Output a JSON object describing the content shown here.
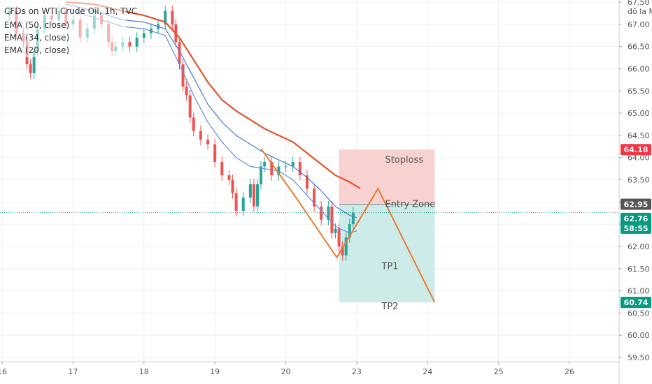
{
  "chart_data": {
    "type": "candlestick",
    "title": "CFDs on WTI Crude Oil, 1h, TVC",
    "indicators": [
      {
        "name": "EMA (50, close)",
        "color": "#e8502d"
      },
      {
        "name": "EMA (34, close)",
        "color": "#4a79d8"
      },
      {
        "name": "EMA (20, close)",
        "color": "#5b8ee8"
      }
    ],
    "currency_label": "đô la Mỹ",
    "ylim": [
      59.5,
      67.5
    ],
    "y_ticks": [
      "67.50",
      "67.00",
      "66.50",
      "66.00",
      "65.50",
      "65.00",
      "64.50",
      "64.00",
      "63.50",
      "63.00",
      "62.50",
      "62.00",
      "61.50",
      "61.00",
      "60.50",
      "60.00",
      "59.50"
    ],
    "x_ticks": [
      "16",
      "17",
      "18",
      "19",
      "20",
      "23",
      "24",
      "25",
      "26"
    ],
    "x_tick_positions": [
      16,
      17,
      18,
      19,
      20,
      21,
      22,
      23,
      24
    ],
    "xlim": [
      15.97,
      24.7
    ],
    "candle_close_path": [
      [
        16.0,
        67.2
      ],
      [
        16.1,
        67.3
      ],
      [
        16.2,
        66.8
      ],
      [
        16.3,
        66.6
      ],
      [
        16.35,
        66.1
      ],
      [
        16.4,
        65.9
      ],
      [
        16.45,
        66.4
      ],
      [
        16.5,
        66.9
      ],
      [
        16.6,
        67.2
      ],
      [
        16.7,
        67.1
      ],
      [
        16.8,
        67.3
      ],
      [
        16.9,
        67.0
      ],
      [
        17.0,
        67.1
      ],
      [
        17.1,
        66.7
      ],
      [
        17.2,
        66.9
      ],
      [
        17.3,
        67.2
      ],
      [
        17.4,
        67.0
      ],
      [
        17.5,
        66.6
      ],
      [
        17.55,
        66.4
      ],
      [
        17.6,
        66.5
      ],
      [
        17.7,
        66.6
      ],
      [
        17.8,
        66.5
      ],
      [
        17.9,
        66.7
      ],
      [
        18.0,
        66.8
      ],
      [
        18.1,
        66.9
      ],
      [
        18.2,
        67.0
      ],
      [
        18.3,
        67.3
      ],
      [
        18.4,
        67.0
      ],
      [
        18.45,
        66.6
      ],
      [
        18.5,
        66.1
      ],
      [
        18.55,
        65.6
      ],
      [
        18.6,
        65.4
      ],
      [
        18.65,
        64.9
      ],
      [
        18.7,
        64.6
      ],
      [
        18.8,
        64.4
      ],
      [
        18.9,
        64.3
      ],
      [
        19.0,
        63.9
      ],
      [
        19.1,
        63.6
      ],
      [
        19.2,
        63.5
      ],
      [
        19.25,
        63.2
      ],
      [
        19.3,
        62.8
      ],
      [
        19.4,
        63.1
      ],
      [
        19.5,
        63.4
      ],
      [
        19.55,
        62.9
      ],
      [
        19.6,
        63.4
      ],
      [
        19.65,
        63.8
      ],
      [
        19.7,
        63.9
      ],
      [
        19.8,
        63.6
      ],
      [
        19.9,
        63.8
      ],
      [
        20.0,
        63.8
      ],
      [
        20.1,
        63.9
      ],
      [
        20.2,
        63.6
      ],
      [
        20.3,
        63.3
      ],
      [
        20.4,
        62.9
      ],
      [
        20.5,
        62.6
      ],
      [
        20.6,
        62.9
      ],
      [
        20.65,
        62.3
      ],
      [
        20.7,
        62.4
      ],
      [
        20.75,
        62.0
      ],
      [
        20.8,
        61.8
      ],
      [
        20.85,
        62.2
      ],
      [
        20.9,
        62.5
      ],
      [
        20.95,
        62.76
      ]
    ],
    "ema50": [
      [
        16.9,
        67.5
      ],
      [
        17.3,
        67.45
      ],
      [
        17.7,
        67.3
      ],
      [
        18.0,
        67.2
      ],
      [
        18.3,
        67.05
      ],
      [
        18.5,
        66.7
      ],
      [
        18.7,
        66.2
      ],
      [
        18.9,
        65.7
      ],
      [
        19.1,
        65.3
      ],
      [
        19.3,
        65.05
      ],
      [
        19.5,
        64.85
      ],
      [
        19.7,
        64.65
      ],
      [
        19.9,
        64.5
      ],
      [
        20.1,
        64.35
      ],
      [
        20.3,
        64.1
      ],
      [
        20.5,
        63.85
      ],
      [
        20.7,
        63.6
      ],
      [
        20.9,
        63.45
      ],
      [
        21.05,
        63.3
      ]
    ],
    "ema34": [
      [
        16.9,
        67.45
      ],
      [
        17.3,
        67.3
      ],
      [
        17.7,
        67.1
      ],
      [
        18.0,
        67.05
      ],
      [
        18.3,
        66.9
      ],
      [
        18.5,
        66.4
      ],
      [
        18.7,
        65.8
      ],
      [
        18.9,
        65.2
      ],
      [
        19.1,
        64.8
      ],
      [
        19.3,
        64.5
      ],
      [
        19.5,
        64.3
      ],
      [
        19.7,
        64.1
      ],
      [
        19.9,
        63.95
      ],
      [
        20.1,
        63.8
      ],
      [
        20.3,
        63.55
      ],
      [
        20.5,
        63.25
      ],
      [
        20.7,
        62.9
      ],
      [
        20.9,
        62.7
      ],
      [
        21.0,
        62.65
      ]
    ],
    "ema20": [
      [
        16.9,
        67.35
      ],
      [
        17.3,
        67.15
      ],
      [
        17.7,
        66.95
      ],
      [
        18.0,
        66.9
      ],
      [
        18.3,
        66.75
      ],
      [
        18.5,
        66.1
      ],
      [
        18.7,
        65.4
      ],
      [
        18.9,
        64.8
      ],
      [
        19.1,
        64.35
      ],
      [
        19.3,
        64.0
      ],
      [
        19.5,
        63.8
      ],
      [
        19.7,
        63.75
      ],
      [
        19.9,
        63.7
      ],
      [
        20.1,
        63.5
      ],
      [
        20.3,
        63.15
      ],
      [
        20.5,
        62.8
      ],
      [
        20.7,
        62.45
      ],
      [
        20.9,
        62.3
      ],
      [
        21.0,
        62.35
      ]
    ],
    "projection": [
      [
        19.65,
        64.2
      ],
      [
        20.1,
        63.2
      ],
      [
        20.72,
        61.75
      ],
      [
        21.3,
        63.3
      ],
      [
        22.1,
        60.74
      ]
    ],
    "stoploss_zone": {
      "x": [
        20.75,
        22.1
      ],
      "y": [
        62.95,
        64.18
      ]
    },
    "target_zone": {
      "x": [
        20.75,
        22.1
      ],
      "y": [
        60.74,
        62.95
      ]
    },
    "annotations": [
      {
        "text": "Stoploss",
        "x": 21.4,
        "y": 63.95
      },
      {
        "text": "Entry Zone",
        "x": 21.4,
        "y": 62.95
      },
      {
        "text": "TP1",
        "x": 21.35,
        "y": 61.55
      },
      {
        "text": "TP2",
        "x": 21.35,
        "y": 60.65
      }
    ],
    "price_badges": [
      {
        "value": "64.18",
        "y": 64.18,
        "color": "#f23645"
      },
      {
        "value": "62.95",
        "y": 62.95,
        "color": "#555555"
      },
      {
        "value": "62.76",
        "y": 62.63,
        "color": "#089981",
        "sub": "58:55"
      },
      {
        "value": "60.74",
        "y": 60.74,
        "color": "#089981"
      }
    ],
    "current_price": 62.76,
    "colors": {
      "up": "#26a69a",
      "down": "#ef5350",
      "stop_zone": "#f7c9c9",
      "target_zone": "#c4e8e4",
      "projection": "#e87a2e"
    }
  }
}
